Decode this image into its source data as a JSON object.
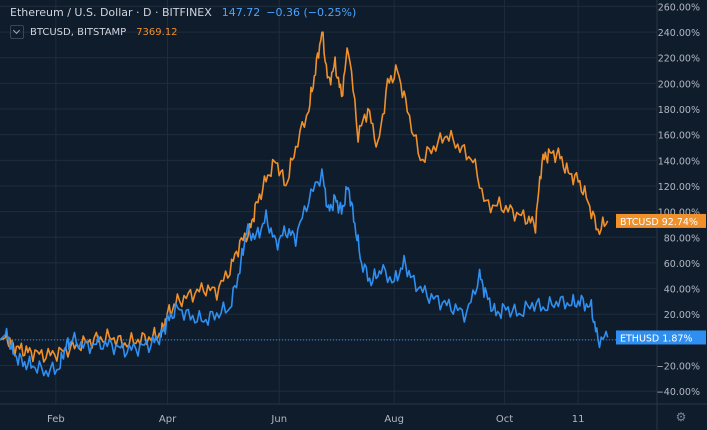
{
  "header": {
    "symbol_title": "Ethereum / U.S. Dollar · D · BITFINEX",
    "price": "147.72",
    "change": "−0.36 (−0.25%)",
    "compare_symbol": "BTCUSD, BITSTAMP",
    "compare_price": "7369.12"
  },
  "colors": {
    "eth": "#2f8ff0",
    "btc": "#f0902a",
    "background": "#0f1c2c",
    "grid": "#1f2c3d",
    "axis_text": "#b2b8c2"
  },
  "chart_data": {
    "type": "line",
    "xlabel": "",
    "ylabel": "",
    "ylim": [
      -50,
      265
    ],
    "y_ticks": [
      "260.00%",
      "240.00%",
      "220.00%",
      "200.00%",
      "180.00%",
      "160.00%",
      "140.00%",
      "120.00%",
      "100.00%",
      "80.00%",
      "60.00%",
      "40.00%",
      "20.00%",
      "0.00%",
      "−20.00%",
      "−40.00%"
    ],
    "x_ticks": [
      {
        "label": "Feb",
        "pos": 0.085
      },
      {
        "label": "Apr",
        "pos": 0.255
      },
      {
        "label": "Jun",
        "pos": 0.425
      },
      {
        "label": "Aug",
        "pos": 0.6
      },
      {
        "label": "Oct",
        "pos": 0.768
      },
      {
        "label": "11",
        "pos": 0.88
      }
    ],
    "series": [
      {
        "name": "BTCUSD",
        "last_label": "92.74%",
        "points": [
          [
            0,
            0
          ],
          [
            0.01,
            2
          ],
          [
            0.02,
            -5
          ],
          [
            0.035,
            -8
          ],
          [
            0.05,
            -10
          ],
          [
            0.07,
            -12
          ],
          [
            0.09,
            -10
          ],
          [
            0.11,
            -6
          ],
          [
            0.13,
            -2
          ],
          [
            0.15,
            1
          ],
          [
            0.17,
            2
          ],
          [
            0.19,
            -3
          ],
          [
            0.21,
            0
          ],
          [
            0.23,
            2
          ],
          [
            0.245,
            5
          ],
          [
            0.255,
            20
          ],
          [
            0.27,
            30
          ],
          [
            0.29,
            35
          ],
          [
            0.31,
            40
          ],
          [
            0.33,
            38
          ],
          [
            0.35,
            55
          ],
          [
            0.365,
            75
          ],
          [
            0.38,
            85
          ],
          [
            0.39,
            105
          ],
          [
            0.405,
            125
          ],
          [
            0.42,
            140
          ],
          [
            0.435,
            120
          ],
          [
            0.45,
            150
          ],
          [
            0.47,
            180
          ],
          [
            0.48,
            210
          ],
          [
            0.49,
            240
          ],
          [
            0.5,
            200
          ],
          [
            0.51,
            215
          ],
          [
            0.52,
            190
          ],
          [
            0.53,
            230
          ],
          [
            0.545,
            160
          ],
          [
            0.56,
            180
          ],
          [
            0.575,
            150
          ],
          [
            0.59,
            200
          ],
          [
            0.605,
            210
          ],
          [
            0.62,
            180
          ],
          [
            0.64,
            140
          ],
          [
            0.66,
            150
          ],
          [
            0.68,
            160
          ],
          [
            0.7,
            150
          ],
          [
            0.72,
            140
          ],
          [
            0.74,
            105
          ],
          [
            0.76,
            105
          ],
          [
            0.78,
            100
          ],
          [
            0.8,
            95
          ],
          [
            0.815,
            90
          ],
          [
            0.825,
            140
          ],
          [
            0.835,
            145
          ],
          [
            0.85,
            145
          ],
          [
            0.865,
            130
          ],
          [
            0.88,
            125
          ],
          [
            0.895,
            108
          ],
          [
            0.91,
            85
          ],
          [
            0.925,
            92.74
          ]
        ]
      },
      {
        "name": "ETHUSD",
        "last_label": "1.87%",
        "points": [
          [
            0,
            0
          ],
          [
            0.01,
            5
          ],
          [
            0.02,
            -10
          ],
          [
            0.035,
            -18
          ],
          [
            0.05,
            -20
          ],
          [
            0.07,
            -25
          ],
          [
            0.09,
            -22
          ],
          [
            0.1,
            -5
          ],
          [
            0.11,
            0
          ],
          [
            0.13,
            -5
          ],
          [
            0.15,
            -3
          ],
          [
            0.17,
            -4
          ],
          [
            0.19,
            -8
          ],
          [
            0.21,
            -6
          ],
          [
            0.23,
            -3
          ],
          [
            0.245,
            3
          ],
          [
            0.255,
            15
          ],
          [
            0.27,
            25
          ],
          [
            0.29,
            18
          ],
          [
            0.31,
            15
          ],
          [
            0.33,
            20
          ],
          [
            0.35,
            25
          ],
          [
            0.365,
            55
          ],
          [
            0.375,
            85
          ],
          [
            0.39,
            80
          ],
          [
            0.405,
            95
          ],
          [
            0.42,
            75
          ],
          [
            0.435,
            85
          ],
          [
            0.45,
            80
          ],
          [
            0.47,
            110
          ],
          [
            0.49,
            130
          ],
          [
            0.5,
            100
          ],
          [
            0.51,
            110
          ],
          [
            0.52,
            100
          ],
          [
            0.53,
            120
          ],
          [
            0.54,
            90
          ],
          [
            0.55,
            60
          ],
          [
            0.565,
            45
          ],
          [
            0.58,
            55
          ],
          [
            0.6,
            45
          ],
          [
            0.615,
            60
          ],
          [
            0.63,
            45
          ],
          [
            0.65,
            35
          ],
          [
            0.67,
            30
          ],
          [
            0.69,
            25
          ],
          [
            0.71,
            20
          ],
          [
            0.73,
            50
          ],
          [
            0.74,
            35
          ],
          [
            0.755,
            20
          ],
          [
            0.77,
            25
          ],
          [
            0.79,
            20
          ],
          [
            0.81,
            28
          ],
          [
            0.83,
            25
          ],
          [
            0.85,
            30
          ],
          [
            0.87,
            28
          ],
          [
            0.885,
            30
          ],
          [
            0.9,
            25
          ],
          [
            0.91,
            0
          ],
          [
            0.925,
            1.87
          ]
        ]
      }
    ]
  }
}
